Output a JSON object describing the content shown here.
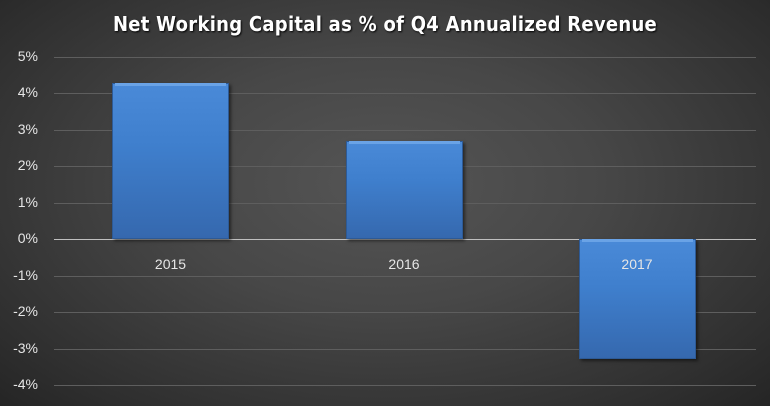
{
  "chart_data": {
    "type": "bar",
    "title": "Net Working Capital as % of Q4 Annualized Revenue",
    "categories": [
      "2015",
      "2016",
      "2017"
    ],
    "values": [
      4.3,
      2.7,
      -3.3
    ],
    "value_unit": "%",
    "xlabel": "",
    "ylabel": "",
    "ylim": [
      -4,
      5
    ],
    "yticks": [
      "5%",
      "4%",
      "3%",
      "2%",
      "1%",
      "0%",
      "-1%",
      "-2%",
      "-3%",
      "-4%"
    ],
    "grid": true,
    "legend": null,
    "colors": {
      "bar": "#3f7fcd",
      "background": "#404040",
      "text": "#e6e6e6"
    }
  }
}
